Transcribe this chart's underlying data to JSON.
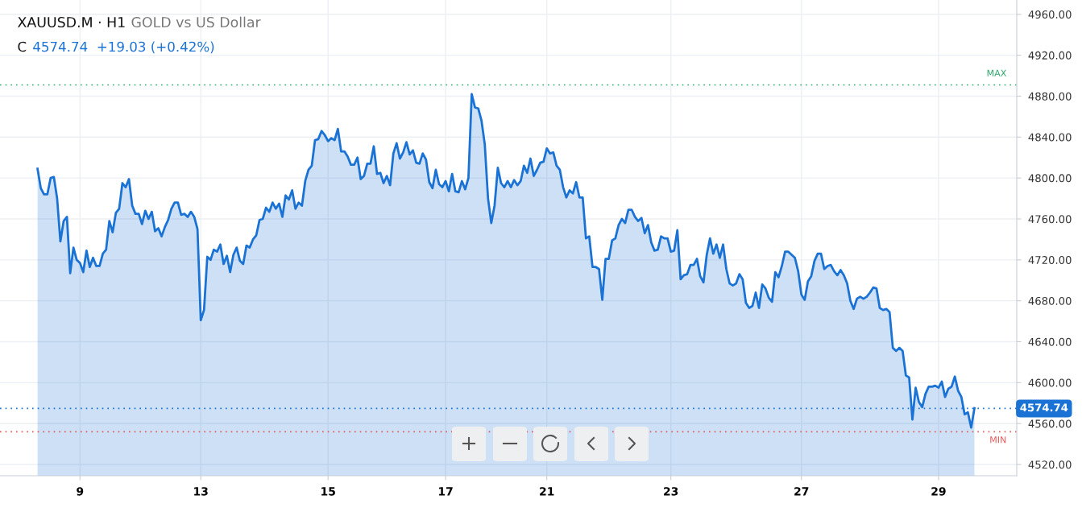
{
  "chart_data": {
    "type": "area",
    "title": "XAUUSD.M · H1",
    "subtitle": "GOLD vs US Dollar",
    "annotations": [
      "C",
      "4574.74  +19.03 (+0.42%)"
    ],
    "categories": [
      null,
      null,
      null,
      null,
      null,
      null,
      null,
      null,
      null,
      null,
      null,
      null,
      null,
      "9",
      null,
      null,
      null,
      null,
      null,
      null,
      null,
      null,
      null,
      null,
      null,
      null,
      null,
      null,
      null,
      null,
      null,
      null,
      null,
      null,
      null,
      null,
      null,
      null,
      null,
      null,
      null,
      null,
      null,
      null,
      null,
      null,
      null,
      null,
      null,
      null,
      "13",
      null,
      null,
      null,
      null,
      null,
      null,
      null,
      null,
      null,
      null,
      null,
      null,
      null,
      null,
      null,
      null,
      null,
      null,
      null,
      null,
      null,
      null,
      null,
      null,
      null,
      null,
      null,
      null,
      null,
      null,
      null,
      null,
      null,
      null,
      null,
      null,
      null,
      null,
      "15",
      null,
      null,
      null,
      null,
      null,
      null,
      null,
      null,
      null,
      null,
      null,
      null,
      null,
      null,
      null,
      null,
      null,
      null,
      null,
      null,
      null,
      null,
      null,
      null,
      null,
      null,
      null,
      null,
      null,
      null,
      null,
      null,
      null,
      null,
      null,
      "17",
      null,
      null,
      null,
      null,
      null,
      null,
      null,
      null,
      null,
      null,
      null,
      null,
      null,
      null,
      null,
      null,
      null,
      null,
      null,
      null,
      null,
      null,
      null,
      null,
      null,
      null,
      null,
      null,
      null,
      null,
      "21",
      null,
      null,
      null,
      null,
      null,
      null,
      null,
      null,
      null,
      null,
      null,
      null,
      null,
      null,
      null,
      null,
      null,
      null,
      null,
      null,
      null,
      null,
      null,
      null,
      null,
      null,
      null,
      null,
      null,
      null,
      null,
      null,
      null,
      null,
      null,
      null,
      null,
      "23",
      null,
      null,
      null,
      null,
      null,
      null,
      null,
      null,
      null,
      null,
      null,
      null,
      null,
      null,
      null,
      null,
      null,
      null,
      null,
      null,
      null,
      null,
      null,
      null,
      null,
      null,
      null,
      null,
      null,
      null,
      null,
      null,
      null,
      null,
      null,
      null,
      null,
      null,
      null,
      "27",
      null,
      null,
      null,
      null,
      null,
      null,
      null,
      null,
      null,
      null,
      null,
      null,
      null,
      null,
      null,
      null,
      null,
      null,
      null,
      null,
      null,
      null,
      null,
      null,
      null,
      null,
      null,
      null,
      null,
      null,
      null,
      null,
      null,
      null,
      null,
      null,
      null,
      null,
      null,
      null,
      null,
      "29",
      null,
      null,
      null,
      null,
      null,
      null,
      null,
      null,
      null,
      null,
      null
    ],
    "series": [
      {
        "color": "#1a73d4",
        "values": [
          4809,
          4790,
          4784,
          4784,
          4800,
          4801,
          4780,
          4738,
          4758,
          4762,
          4707,
          4732,
          4720,
          4717,
          4708,
          4729,
          4713,
          4722,
          4714,
          4714,
          4726,
          4730,
          4758,
          4747,
          4766,
          4770,
          4795,
          4791,
          4799,
          4773,
          4765,
          4765,
          4755,
          4768,
          4760,
          4767,
          4748,
          4751,
          4743,
          4752,
          4759,
          4770,
          4776,
          4776,
          4764,
          4765,
          4762,
          4767,
          4762,
          4750,
          4661,
          4671,
          4723,
          4720,
          4730,
          4728,
          4735,
          4716,
          4724,
          4708,
          4725,
          4732,
          4719,
          4716,
          4734,
          4732,
          4740,
          4744,
          4759,
          4760,
          4771,
          4767,
          4776,
          4770,
          4775,
          4762,
          4783,
          4779,
          4788,
          4770,
          4776,
          4773,
          4797,
          4808,
          4812,
          4837,
          4838,
          4846,
          4842,
          4836,
          4839,
          4837,
          4848,
          4826,
          4826,
          4821,
          4813,
          4813,
          4820,
          4799,
          4802,
          4814,
          4814,
          4831,
          4804,
          4805,
          4795,
          4802,
          4793,
          4824,
          4834,
          4819,
          4825,
          4835,
          4823,
          4827,
          4815,
          4814,
          4824,
          4818,
          4796,
          4790,
          4808,
          4794,
          4791,
          4797,
          4787,
          4804,
          4787,
          4786,
          4797,
          4789,
          4800,
          4882,
          4869,
          4868,
          4856,
          4833,
          4780,
          4756,
          4773,
          4810,
          4795,
          4791,
          4797,
          4791,
          4798,
          4793,
          4797,
          4812,
          4805,
          4819,
          4802,
          4808,
          4815,
          4816,
          4829,
          4824,
          4825,
          4812,
          4808,
          4791,
          4781,
          4788,
          4785,
          4796,
          4781,
          4781,
          4741,
          4743,
          4713,
          4713,
          4711,
          4681,
          4721,
          4721,
          4739,
          4741,
          4754,
          4760,
          4756,
          4769,
          4769,
          4762,
          4758,
          4761,
          4746,
          4754,
          4737,
          4729,
          4730,
          4743,
          4741,
          4741,
          4728,
          4729,
          4749,
          4701,
          4705,
          4706,
          4715,
          4715,
          4721,
          4704,
          4698,
          4725,
          4741,
          4726,
          4735,
          4722,
          4735,
          4711,
          4697,
          4695,
          4697,
          4706,
          4701,
          4678,
          4673,
          4675,
          4688,
          4673,
          4696,
          4692,
          4683,
          4679,
          4708,
          4703,
          4714,
          4728,
          4728,
          4725,
          4722,
          4709,
          4686,
          4681,
          4699,
          4704,
          4719,
          4726,
          4726,
          4711,
          4714,
          4715,
          4709,
          4705,
          4710,
          4705,
          4697,
          4680,
          4672,
          4682,
          4684,
          4682,
          4684,
          4688,
          4693,
          4692,
          4673,
          4671,
          4672,
          4669,
          4634,
          4631,
          4634,
          4631,
          4607,
          4605,
          4564,
          4595,
          4581,
          4576,
          4589,
          4596,
          4596,
          4597,
          4595,
          4601,
          4586,
          4594,
          4596,
          4606,
          4592,
          4586,
          4569,
          4571,
          4556,
          4575
        ]
      }
    ],
    "ylim": [
      4509,
      4974
    ],
    "yticks": [
      {
        "value": 4520,
        "label": "4520.00"
      },
      {
        "value": 4560,
        "label": "4560.00"
      },
      {
        "value": 4600,
        "label": "4600.00"
      },
      {
        "value": 4640,
        "label": "4640.00"
      },
      {
        "value": 4680,
        "label": "4680.00"
      },
      {
        "value": 4720,
        "label": "4720.00"
      },
      {
        "value": 4760,
        "label": "4760.00"
      },
      {
        "value": 4800,
        "label": "4800.00"
      },
      {
        "value": 4840,
        "label": "4840.00"
      },
      {
        "value": 4880,
        "label": "4880.00"
      },
      {
        "value": 4920,
        "label": "4920.00"
      },
      {
        "value": 4960,
        "label": "4960.00"
      }
    ],
    "ref_lines": [
      {
        "axis": "y",
        "value": 4891,
        "label": "MAX",
        "color": "#2eaa6a",
        "line_style": "dotted"
      },
      {
        "axis": "y",
        "value": 4552,
        "label": "MIN",
        "color": "#e85a5a",
        "line_style": "dotted"
      },
      {
        "axis": "y",
        "value": 4574.74,
        "label": "4574.74",
        "color": "#1a73d4",
        "line_style": "dotted"
      }
    ],
    "grid": true,
    "legend": false
  }
}
